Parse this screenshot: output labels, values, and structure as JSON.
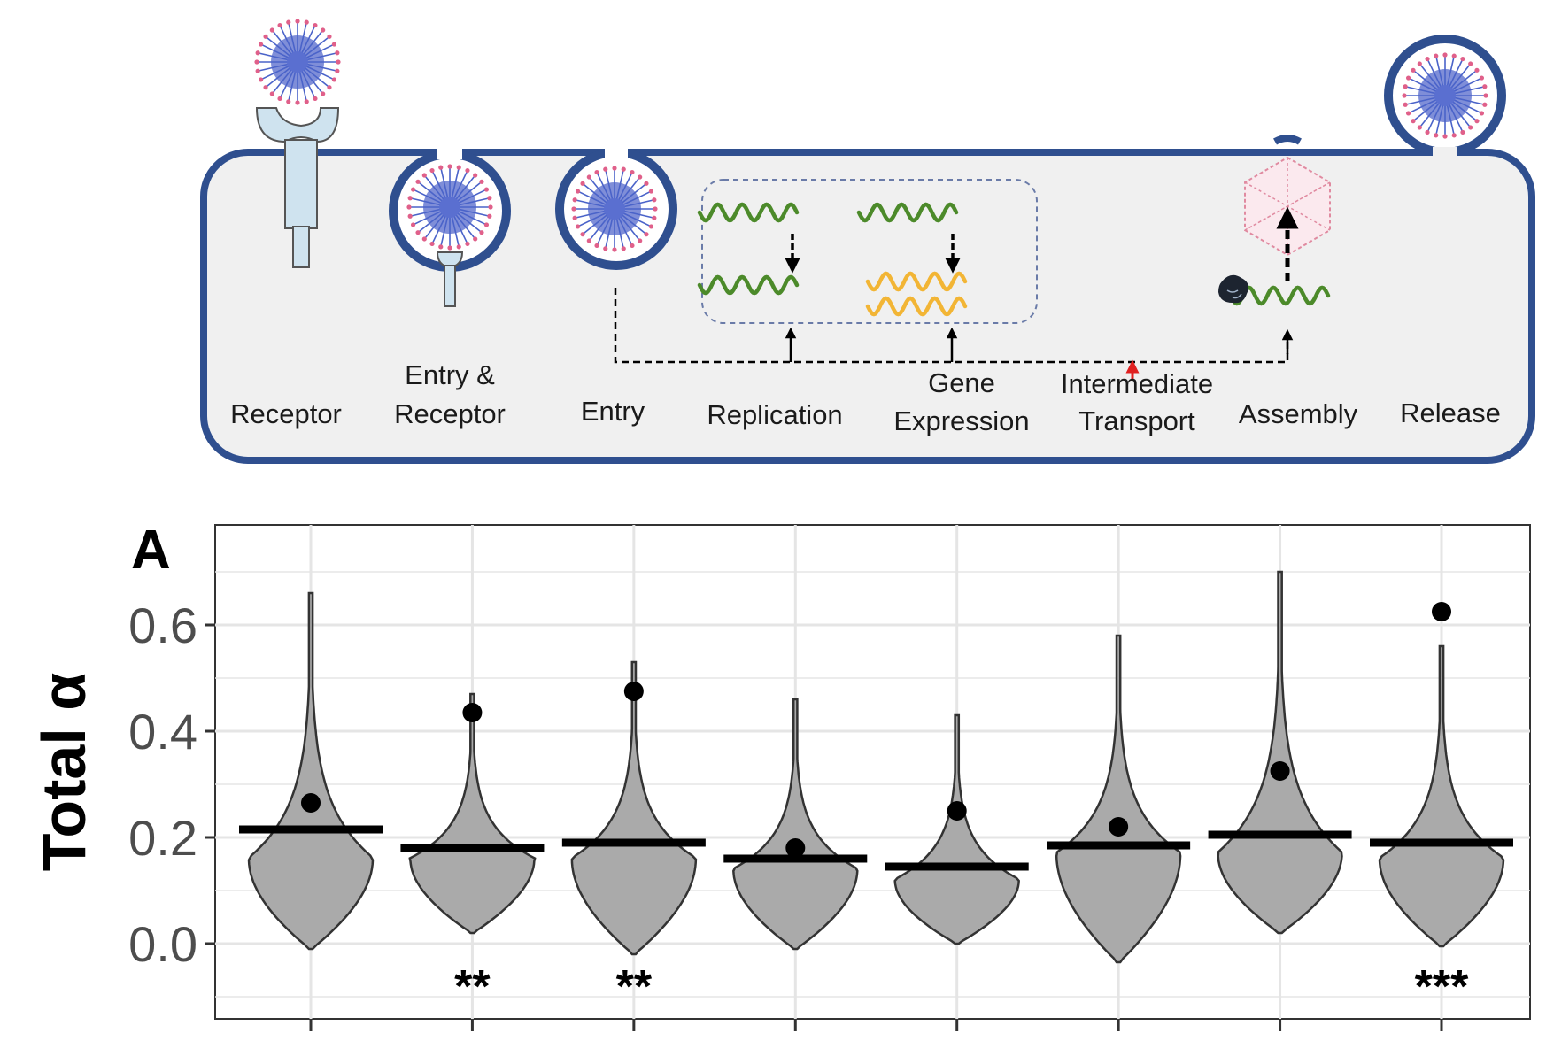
{
  "diagram": {
    "stages": [
      {
        "lines": [
          "Receptor"
        ]
      },
      {
        "lines": [
          "Entry &",
          "Receptor"
        ]
      },
      {
        "lines": [
          "Entry"
        ]
      },
      {
        "lines": [
          "Replication"
        ]
      },
      {
        "lines": [
          "Gene",
          "Expression"
        ]
      },
      {
        "lines": [
          "Intermediate",
          "Transport"
        ]
      },
      {
        "lines": [
          "Assembly"
        ]
      },
      {
        "lines": [
          "Release"
        ]
      }
    ],
    "colors": {
      "membrane": "#2f4f8f",
      "cell_fill": "#f0f0f0",
      "rna_green": "#4c8a2a",
      "rna_yellow": "#f2b535",
      "capsid": "#e08aa0",
      "receptor": "#cfe3ef",
      "red_arrow": "#e02020"
    }
  },
  "chart_data": {
    "type": "violin",
    "panel_label": "A",
    "ylabel": "Total α",
    "ylim": [
      -0.14,
      0.76
    ],
    "yticks": [
      0.0,
      0.2,
      0.4,
      0.6
    ],
    "grid": true,
    "categories": [
      "Receptor",
      "Entry & Receptor",
      "Entry",
      "Replication",
      "Gene Expression",
      "Intermediate Transport",
      "Assembly",
      "Release"
    ],
    "series": [
      {
        "category": "Receptor",
        "min": -0.01,
        "max": 0.66,
        "mode": 0.16,
        "median": 0.215,
        "point": 0.265,
        "significance": ""
      },
      {
        "category": "Entry & Receptor",
        "min": 0.02,
        "max": 0.47,
        "mode": 0.16,
        "median": 0.18,
        "point": 0.435,
        "significance": "**"
      },
      {
        "category": "Entry",
        "min": -0.02,
        "max": 0.53,
        "mode": 0.16,
        "median": 0.19,
        "point": 0.475,
        "significance": "**"
      },
      {
        "category": "Replication",
        "min": -0.01,
        "max": 0.46,
        "mode": 0.14,
        "median": 0.16,
        "point": 0.18,
        "significance": ""
      },
      {
        "category": "Gene Expression",
        "min": 0.0,
        "max": 0.43,
        "mode": 0.12,
        "median": 0.145,
        "point": 0.25,
        "significance": ""
      },
      {
        "category": "Intermediate Transport",
        "min": -0.035,
        "max": 0.58,
        "mode": 0.17,
        "median": 0.185,
        "point": 0.22,
        "significance": ""
      },
      {
        "category": "Assembly",
        "min": 0.02,
        "max": 0.7,
        "mode": 0.17,
        "median": 0.205,
        "point": 0.325,
        "significance": ""
      },
      {
        "category": "Release",
        "min": -0.005,
        "max": 0.56,
        "mode": 0.16,
        "median": 0.19,
        "point": 0.625,
        "significance": "***"
      }
    ],
    "colors": {
      "violin_fill": "#aaaaaa",
      "violin_stroke": "#333333",
      "median": "#000000",
      "point": "#000000",
      "grid": "#e5e5e5"
    }
  }
}
